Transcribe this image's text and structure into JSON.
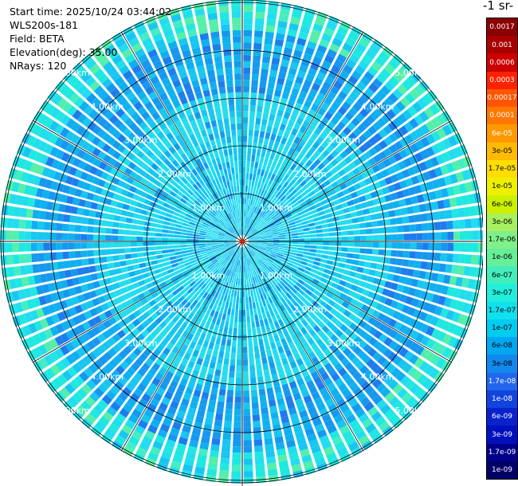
{
  "info": {
    "start_time": "Start time: 2025/10/24 03:44:02",
    "instrument": "WLS200s-181",
    "field": "Field: BETA",
    "elevation": "Elevation(deg): 35.00",
    "nrays": "NRays: 120"
  },
  "colorbar_title": "-1 sr-",
  "colorbar": {
    "labels": [
      "0.0017",
      "0.001",
      "0.0006",
      "0.0003",
      "0.00017",
      "0.0001",
      "6e-05",
      "3e-05",
      "1.7e-05",
      "1e-05",
      "6e-06",
      "3e-06",
      "1.7e-06",
      "1e-06",
      "6e-07",
      "3e-07",
      "1.7e-07",
      "1e-07",
      "6e-08",
      "3e-08",
      "1.7e-08",
      "1e-08",
      "6e-09",
      "3e-09",
      "1.7e-09",
      "1e-09"
    ],
    "colors": [
      "#8b0000",
      "#a80000",
      "#cc0000",
      "#ff2200",
      "#ff5500",
      "#ff7700",
      "#ff9900",
      "#ffbb00",
      "#ffdd00",
      "#eef000",
      "#ccf000",
      "#a8f060",
      "#7ff08a",
      "#66ee99",
      "#44eebb",
      "#22eedd",
      "#11e0ee",
      "#00ccf0",
      "#00a8f0",
      "#1188ee",
      "#2266ee",
      "#1144dd",
      "#0a22cc",
      "#0011bb",
      "#00008b",
      "#000066"
    ]
  },
  "chart_data": {
    "type": "ppi",
    "field": "BETA",
    "nrays": 120,
    "range_rings_km": [
      1.0,
      2.0,
      3.0,
      4.0,
      5.0
    ],
    "ring_labels": [
      "1.00km",
      "2.00km",
      "3.00km",
      "4.00km",
      "5.00km"
    ],
    "scale": "log"
  }
}
